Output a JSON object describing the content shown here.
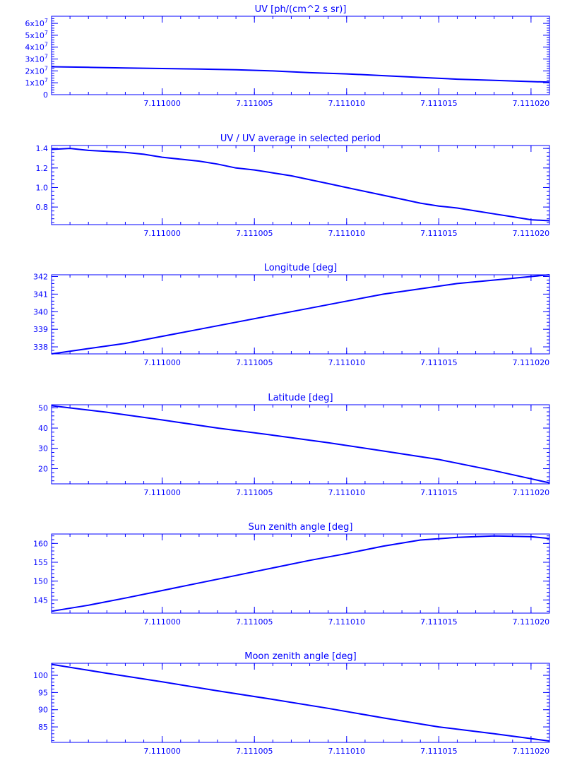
{
  "chart_data": [
    {
      "type": "line",
      "title": "UV [ph/(cm^2 s sr)]",
      "xlim": [
        7.110994,
        7.111021
      ],
      "xticks": [
        "7.111000",
        "7.111005",
        "7.111010",
        "7.111015",
        "7.111020"
      ],
      "ylim": [
        0,
        66000000.0
      ],
      "yticks": [
        {
          "value": 60000000.0,
          "label": "6x10",
          "exp": "7"
        },
        {
          "value": 50000000.0,
          "label": "5x10",
          "exp": "7"
        },
        {
          "value": 40000000.0,
          "label": "4x10",
          "exp": "7"
        },
        {
          "value": 30000000.0,
          "label": "3x10",
          "exp": "7"
        },
        {
          "value": 20000000.0,
          "label": "2x10",
          "exp": "7"
        },
        {
          "value": 10000000.0,
          "label": "1x10",
          "exp": "7"
        },
        {
          "value": 0,
          "label": "0",
          "exp": ""
        }
      ],
      "series": [
        {
          "x": [
            7.110994,
            7.110996,
            7.110998,
            7.111,
            7.111002,
            7.111004,
            7.111006,
            7.111008,
            7.11101,
            7.111012,
            7.111014,
            7.111016,
            7.111018,
            7.11102,
            7.111021
          ],
          "y": [
            23500000.0,
            23000000.0,
            22500000.0,
            22000000.0,
            21500000.0,
            21000000.0,
            20000000.0,
            18500000.0,
            17500000.0,
            16000000.0,
            14500000.0,
            13000000.0,
            12000000.0,
            11000000.0,
            10500000.0
          ]
        }
      ]
    },
    {
      "type": "line",
      "title": "UV / UV average in selected period",
      "xlim": [
        7.110994,
        7.111021
      ],
      "xticks": [
        "7.111000",
        "7.111005",
        "7.111010",
        "7.111015",
        "7.111020"
      ],
      "ylim": [
        0.62,
        1.43
      ],
      "yticks": [
        {
          "value": 1.4,
          "label": "1.4",
          "exp": ""
        },
        {
          "value": 1.2,
          "label": "1.2",
          "exp": ""
        },
        {
          "value": 1.0,
          "label": "1.0",
          "exp": ""
        },
        {
          "value": 0.8,
          "label": "0.8",
          "exp": ""
        }
      ],
      "series": [
        {
          "x": [
            7.110994,
            7.110995,
            7.110996,
            7.110997,
            7.110998,
            7.110999,
            7.111,
            7.111001,
            7.111002,
            7.111003,
            7.111004,
            7.111005,
            7.111006,
            7.111007,
            7.111008,
            7.111009,
            7.11101,
            7.111011,
            7.111012,
            7.111013,
            7.111014,
            7.111015,
            7.111016,
            7.111017,
            7.111018,
            7.111019,
            7.11102,
            7.111021
          ],
          "y": [
            1.39,
            1.4,
            1.38,
            1.37,
            1.36,
            1.34,
            1.31,
            1.29,
            1.27,
            1.24,
            1.2,
            1.18,
            1.15,
            1.12,
            1.08,
            1.04,
            1.0,
            0.96,
            0.92,
            0.88,
            0.84,
            0.81,
            0.79,
            0.76,
            0.73,
            0.7,
            0.67,
            0.66
          ]
        }
      ]
    },
    {
      "type": "line",
      "title": "Longitude [deg]",
      "xlim": [
        7.110994,
        7.111021
      ],
      "xticks": [
        "7.111000",
        "7.111005",
        "7.111010",
        "7.111015",
        "7.111020"
      ],
      "ylim": [
        337.6,
        342.1
      ],
      "yticks": [
        {
          "value": 342,
          "label": "342",
          "exp": ""
        },
        {
          "value": 341,
          "label": "341",
          "exp": ""
        },
        {
          "value": 340,
          "label": "340",
          "exp": ""
        },
        {
          "value": 339,
          "label": "339",
          "exp": ""
        },
        {
          "value": 338,
          "label": "338",
          "exp": ""
        }
      ],
      "series": [
        {
          "x": [
            7.110994,
            7.110996,
            7.110998,
            7.111,
            7.111002,
            7.111004,
            7.111006,
            7.111008,
            7.11101,
            7.111012,
            7.111014,
            7.111016,
            7.111018,
            7.11102,
            7.111021
          ],
          "y": [
            337.6,
            337.9,
            338.2,
            338.6,
            339.0,
            339.4,
            339.8,
            340.2,
            340.6,
            341.0,
            341.3,
            341.6,
            341.8,
            342.0,
            342.1
          ]
        }
      ]
    },
    {
      "type": "line",
      "title": "Latitude [deg]",
      "xlim": [
        7.110994,
        7.111021
      ],
      "xticks": [
        "7.111000",
        "7.111005",
        "7.111010",
        "7.111015",
        "7.111020"
      ],
      "ylim": [
        12.5,
        51.5
      ],
      "yticks": [
        {
          "value": 50,
          "label": "50",
          "exp": ""
        },
        {
          "value": 40,
          "label": "40",
          "exp": ""
        },
        {
          "value": 30,
          "label": "30",
          "exp": ""
        },
        {
          "value": 20,
          "label": "20",
          "exp": ""
        }
      ],
      "series": [
        {
          "x": [
            7.110994,
            7.110997,
            7.111,
            7.111003,
            7.111006,
            7.111009,
            7.111012,
            7.111015,
            7.111018,
            7.111021
          ],
          "y": [
            51.0,
            47.8,
            44.0,
            40.0,
            36.5,
            32.8,
            28.7,
            24.5,
            19.0,
            13.0
          ]
        }
      ]
    },
    {
      "type": "line",
      "title": "Sun zenith angle [deg]",
      "xlim": [
        7.110994,
        7.111021
      ],
      "xticks": [
        "7.111000",
        "7.111005",
        "7.111010",
        "7.111015",
        "7.111020"
      ],
      "ylim": [
        141.5,
        162.5
      ],
      "yticks": [
        {
          "value": 160,
          "label": "160",
          "exp": ""
        },
        {
          "value": 155,
          "label": "155",
          "exp": ""
        },
        {
          "value": 150,
          "label": "150",
          "exp": ""
        },
        {
          "value": 145,
          "label": "145",
          "exp": ""
        }
      ],
      "series": [
        {
          "x": [
            7.110994,
            7.110996,
            7.110998,
            7.111,
            7.111002,
            7.111004,
            7.111006,
            7.111008,
            7.11101,
            7.111012,
            7.111014,
            7.111016,
            7.111018,
            7.11102,
            7.111021
          ],
          "y": [
            142.0,
            143.6,
            145.5,
            147.5,
            149.5,
            151.5,
            153.5,
            155.5,
            157.3,
            159.3,
            160.9,
            161.6,
            162.0,
            161.8,
            161.3
          ]
        }
      ]
    },
    {
      "type": "line",
      "title": "Moon zenith angle [deg]",
      "xlim": [
        7.110994,
        7.111021
      ],
      "xticks": [
        "7.111000",
        "7.111005",
        "7.111010",
        "7.111015",
        "7.111020"
      ],
      "ylim": [
        80.5,
        103.5
      ],
      "yticks": [
        {
          "value": 100,
          "label": "100",
          "exp": ""
        },
        {
          "value": 95,
          "label": "95",
          "exp": ""
        },
        {
          "value": 90,
          "label": "90",
          "exp": ""
        },
        {
          "value": 85,
          "label": "85",
          "exp": ""
        }
      ],
      "series": [
        {
          "x": [
            7.110994,
            7.110997,
            7.111,
            7.111003,
            7.111006,
            7.111009,
            7.111012,
            7.111015,
            7.111018,
            7.111021
          ],
          "y": [
            103.2,
            100.6,
            98.1,
            95.5,
            93.0,
            90.4,
            87.6,
            85.0,
            83.0,
            80.9
          ]
        }
      ]
    }
  ]
}
